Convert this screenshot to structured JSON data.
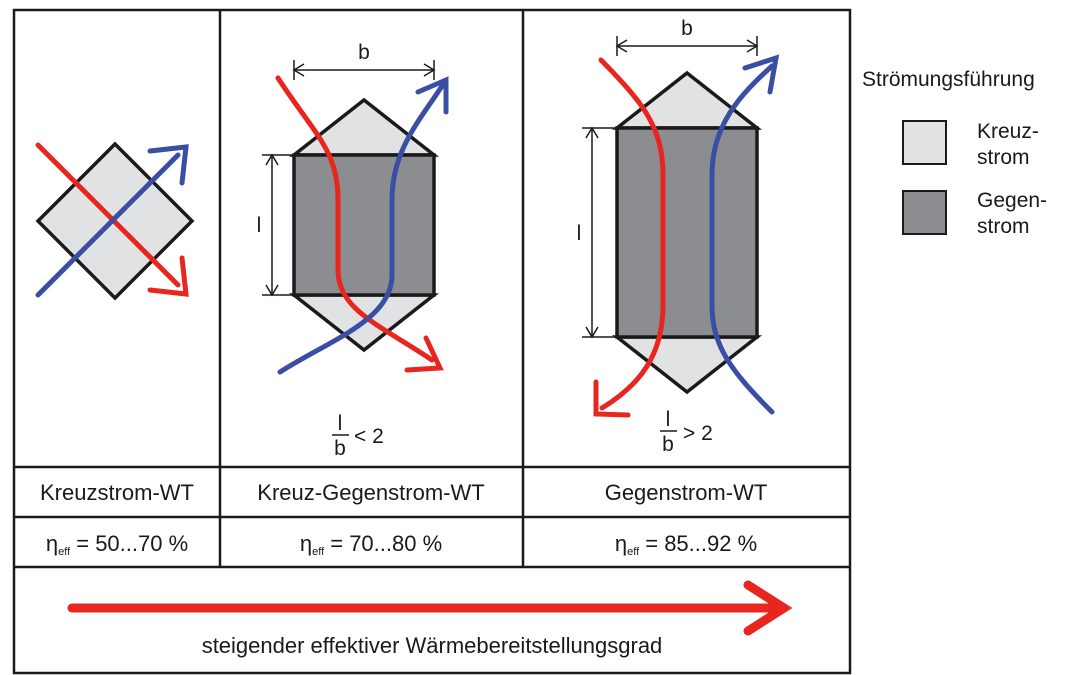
{
  "colors": {
    "cross_fill": "#e1e2e4",
    "counter_fill": "#8b8d91",
    "red_flow": "#e8261f",
    "blue_flow": "#3a4ea4",
    "frame": "#1a1a1a"
  },
  "columns": [
    {
      "title": "Kreuzstrom-WT",
      "efficiency": {
        "eta": "η",
        "sub": "eff",
        "value": " = 50...70 %"
      }
    },
    {
      "title": "Kreuz-Gegenstrom-WT",
      "efficiency": {
        "eta": "η",
        "sub": "eff",
        "value": " = 70...80 %"
      },
      "dimensions": {
        "width": "b",
        "length": "l"
      },
      "ratio": {
        "num": "l",
        "den": "b",
        "rel": "< 2"
      }
    },
    {
      "title": "Gegenstrom-WT",
      "efficiency": {
        "eta": "η",
        "sub": "eff",
        "value": " = 85...92 %"
      },
      "dimensions": {
        "width": "b",
        "length": "l"
      },
      "ratio": {
        "num": "l",
        "den": "b",
        "rel": "> 2"
      }
    }
  ],
  "legend": {
    "title": "Strömungsführung",
    "items": [
      {
        "line1": "Kreuz-",
        "line2": "strom"
      },
      {
        "line1": "Gegen-",
        "line2": "strom"
      }
    ]
  },
  "bottom": {
    "caption": "steigender effektiver Wärmebereitstellungsgrad"
  }
}
